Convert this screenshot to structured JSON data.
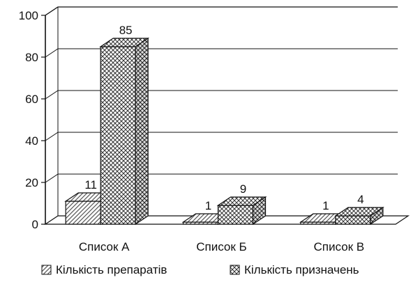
{
  "chart_data": {
    "type": "bar",
    "categories": [
      "Список А",
      "Список Б",
      "Список В"
    ],
    "series": [
      {
        "name": "Кількість препаратів",
        "values": [
          11,
          1,
          1
        ],
        "pattern": "diagonal-hatch"
      },
      {
        "name": "Кількість призначень",
        "values": [
          85,
          9,
          4
        ],
        "pattern": "crosshatch"
      }
    ],
    "yticks": [
      0,
      20,
      40,
      60,
      80,
      100
    ],
    "ylim": [
      0,
      100
    ],
    "grid": true,
    "three_d": true,
    "legend_position": "bottom",
    "colors": {
      "ink": "#111111",
      "background": "#ffffff"
    }
  }
}
